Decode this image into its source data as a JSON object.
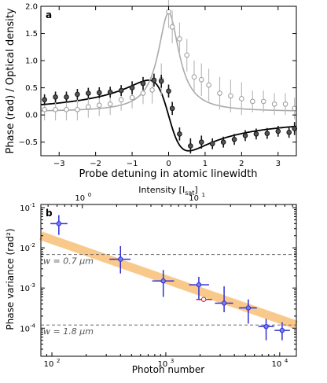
{
  "chart_data": [
    {
      "panel_label": "a",
      "type": "scatter",
      "xlabel": "Probe detuning in atomic linewidth",
      "ylabel": "Phase (rad) / Optical density",
      "xlim": [
        -3.5,
        3.5
      ],
      "ylim": [
        -0.75,
        2.0
      ],
      "xticks": [
        -3,
        -2,
        -1,
        0,
        1,
        2,
        3
      ],
      "xtick_labels": [
        "−3",
        "−2",
        "−1",
        "0",
        "1",
        "2",
        "3"
      ],
      "yticks": [
        -0.5,
        0.0,
        0.5,
        1.0,
        1.5,
        2.0
      ],
      "ytick_labels": [
        "−0.5",
        "0.0",
        "0.5",
        "1.0",
        "1.5",
        "2.0"
      ],
      "series": [
        {
          "style": "filled",
          "color": "#111111",
          "x": [
            -3.4,
            -3.1,
            -2.8,
            -2.5,
            -2.2,
            -1.9,
            -1.6,
            -1.3,
            -1.0,
            -0.7,
            -0.4,
            -0.2,
            0.0,
            0.1,
            0.3,
            0.6,
            0.9,
            1.2,
            1.5,
            1.8,
            2.1,
            2.4,
            2.7,
            3.0,
            3.3,
            3.45
          ],
          "y": [
            0.28,
            0.33,
            0.33,
            0.38,
            0.4,
            0.41,
            0.42,
            0.45,
            0.5,
            0.58,
            0.64,
            0.62,
            0.44,
            0.12,
            -0.35,
            -0.57,
            -0.5,
            -0.53,
            -0.5,
            -0.45,
            -0.38,
            -0.35,
            -0.34,
            -0.3,
            -0.32,
            -0.25
          ],
          "err": [
            0.1,
            0.1,
            0.1,
            0.1,
            0.1,
            0.1,
            0.1,
            0.1,
            0.12,
            0.12,
            0.12,
            0.12,
            0.12,
            0.12,
            0.12,
            0.14,
            0.12,
            0.1,
            0.1,
            0.1,
            0.1,
            0.1,
            0.1,
            0.1,
            0.1,
            0.12
          ]
        },
        {
          "style": "open",
          "color": "#999999",
          "x": [
            -3.4,
            -3.1,
            -2.8,
            -2.5,
            -2.2,
            -1.9,
            -1.6,
            -1.3,
            -1.0,
            -0.7,
            -0.45,
            -0.2,
            0.0,
            0.1,
            0.3,
            0.5,
            0.7,
            0.9,
            1.1,
            1.4,
            1.7,
            2.0,
            2.3,
            2.6,
            2.9,
            3.2,
            3.45
          ],
          "y": [
            0.1,
            0.1,
            0.1,
            0.1,
            0.15,
            0.18,
            0.2,
            0.28,
            0.32,
            0.4,
            0.46,
            0.65,
            1.9,
            1.62,
            1.4,
            1.1,
            0.7,
            0.65,
            0.55,
            0.4,
            0.35,
            0.3,
            0.25,
            0.25,
            0.2,
            0.2,
            0.12
          ],
          "err": [
            0.2,
            0.2,
            0.2,
            0.2,
            0.2,
            0.2,
            0.2,
            0.2,
            0.2,
            0.2,
            0.25,
            0.3,
            0.3,
            0.3,
            0.3,
            0.3,
            0.3,
            0.3,
            0.3,
            0.3,
            0.3,
            0.3,
            0.2,
            0.2,
            0.2,
            0.2,
            0.2
          ]
        }
      ],
      "fit_curves": [
        {
          "name": "",
          "kind": "dispersion",
          "color": "#000000",
          "amplitude": 1.3,
          "width": 0.55,
          "offset": -0.01
        },
        {
          "name": "",
          "kind": "lorentzian",
          "color": "#aaaaaa",
          "amplitude": 1.82,
          "width": 0.35,
          "baseline": 0.06
        }
      ]
    },
    {
      "panel_label": "b",
      "type": "scatter",
      "xscale": "log",
      "yscale": "log",
      "xlabel": "Photon number",
      "ylabel": "Phase variance (rad²)",
      "top_xlabel": "Intensity [I",
      "top_xlabel_sub": "sat",
      "top_xlabel_end": "]",
      "xlim": [
        80,
        14000
      ],
      "ylim": [
        2e-05,
        0.12
      ],
      "xtick_labels": [
        "10",
        "10",
        "10",
        "10"
      ],
      "xtick_exponents": [
        "2",
        "3",
        "4",
        ""
      ],
      "ytick_labels": [
        "10",
        "10",
        "10",
        "10"
      ],
      "ytick_exponents": [
        "-1",
        "-2",
        "-3",
        "-4"
      ],
      "top_ticks": [
        {
          "value": 1,
          "label": "10",
          "exponent": "0"
        },
        {
          "value": 10,
          "label": "10",
          "exponent": "1"
        }
      ],
      "top_axis_photons_per_unit": 185,
      "reference_lines": [
        {
          "label": "w = 0.7 μm",
          "y": 0.0068
        },
        {
          "label": "w = 1.8 μm",
          "y": 0.00012
        }
      ],
      "trend_band": {
        "x": [
          80,
          14000
        ],
        "y": [
          0.02,
          0.00012
        ],
        "color": "#f9c98b"
      },
      "points": [
        {
          "x": 115,
          "y": 0.04,
          "xerr": [
            97,
            137
          ],
          "yerr": [
            0.021,
            0.065
          ],
          "color": "#2f2fd6"
        },
        {
          "x": 400,
          "y": 0.0052,
          "xerr": [
            320,
            490
          ],
          "yerr": [
            0.0023,
            0.011
          ],
          "color": "#2f2fd6"
        },
        {
          "x": 950,
          "y": 0.0015,
          "xerr": [
            760,
            1180
          ],
          "yerr": [
            0.0006,
            0.0028
          ],
          "color": "#2f2fd6"
        },
        {
          "x": 1950,
          "y": 0.0012,
          "xerr": [
            1600,
            2400
          ],
          "yerr": [
            0.0005,
            0.0019
          ],
          "color": "#2f2fd6"
        },
        {
          "x": 2150,
          "y": 0.00052,
          "xerr": [
            1850,
            2550
          ],
          "yerr": [
            0.00052,
            0.00052
          ],
          "color": "#d02020"
        },
        {
          "x": 3250,
          "y": 0.00042,
          "xerr": [
            2700,
            3900
          ],
          "yerr": [
            0.00025,
            0.0011
          ],
          "color": "#2f2fd6"
        },
        {
          "x": 5300,
          "y": 0.00032,
          "xerr": [
            4400,
            6300
          ],
          "yerr": [
            0.00013,
            0.00052
          ],
          "color": "#2f2fd6"
        },
        {
          "x": 7600,
          "y": 0.00011,
          "xerr": [
            6500,
            8900
          ],
          "yerr": [
            5e-05,
            0.00017
          ],
          "color": "#2f2fd6"
        },
        {
          "x": 10500,
          "y": 8.8e-05,
          "xerr": [
            9000,
            12300
          ],
          "yerr": [
            5e-05,
            0.00014
          ],
          "color": "#2f2fd6"
        }
      ]
    }
  ]
}
